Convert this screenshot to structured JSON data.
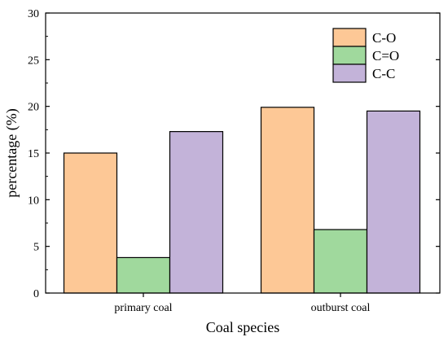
{
  "chart_data": {
    "type": "bar",
    "categories": [
      "primary coal",
      "outburst coal"
    ],
    "series": [
      {
        "name": "C-O",
        "values": [
          15.0,
          19.9
        ],
        "color": "#FDC896"
      },
      {
        "name": "C=O",
        "values": [
          3.8,
          6.8
        ],
        "color": "#A0D99D"
      },
      {
        "name": "C-C",
        "values": [
          17.3,
          19.5
        ],
        "color": "#C3B3D9"
      }
    ],
    "title": "",
    "xlabel": "Coal species",
    "ylabel": "percentage (%)",
    "ylim": [
      0,
      30
    ],
    "yticks": [
      "0",
      "5",
      "10",
      "15",
      "20",
      "25",
      "30"
    ],
    "grid": false,
    "legend_position": "top-right"
  }
}
